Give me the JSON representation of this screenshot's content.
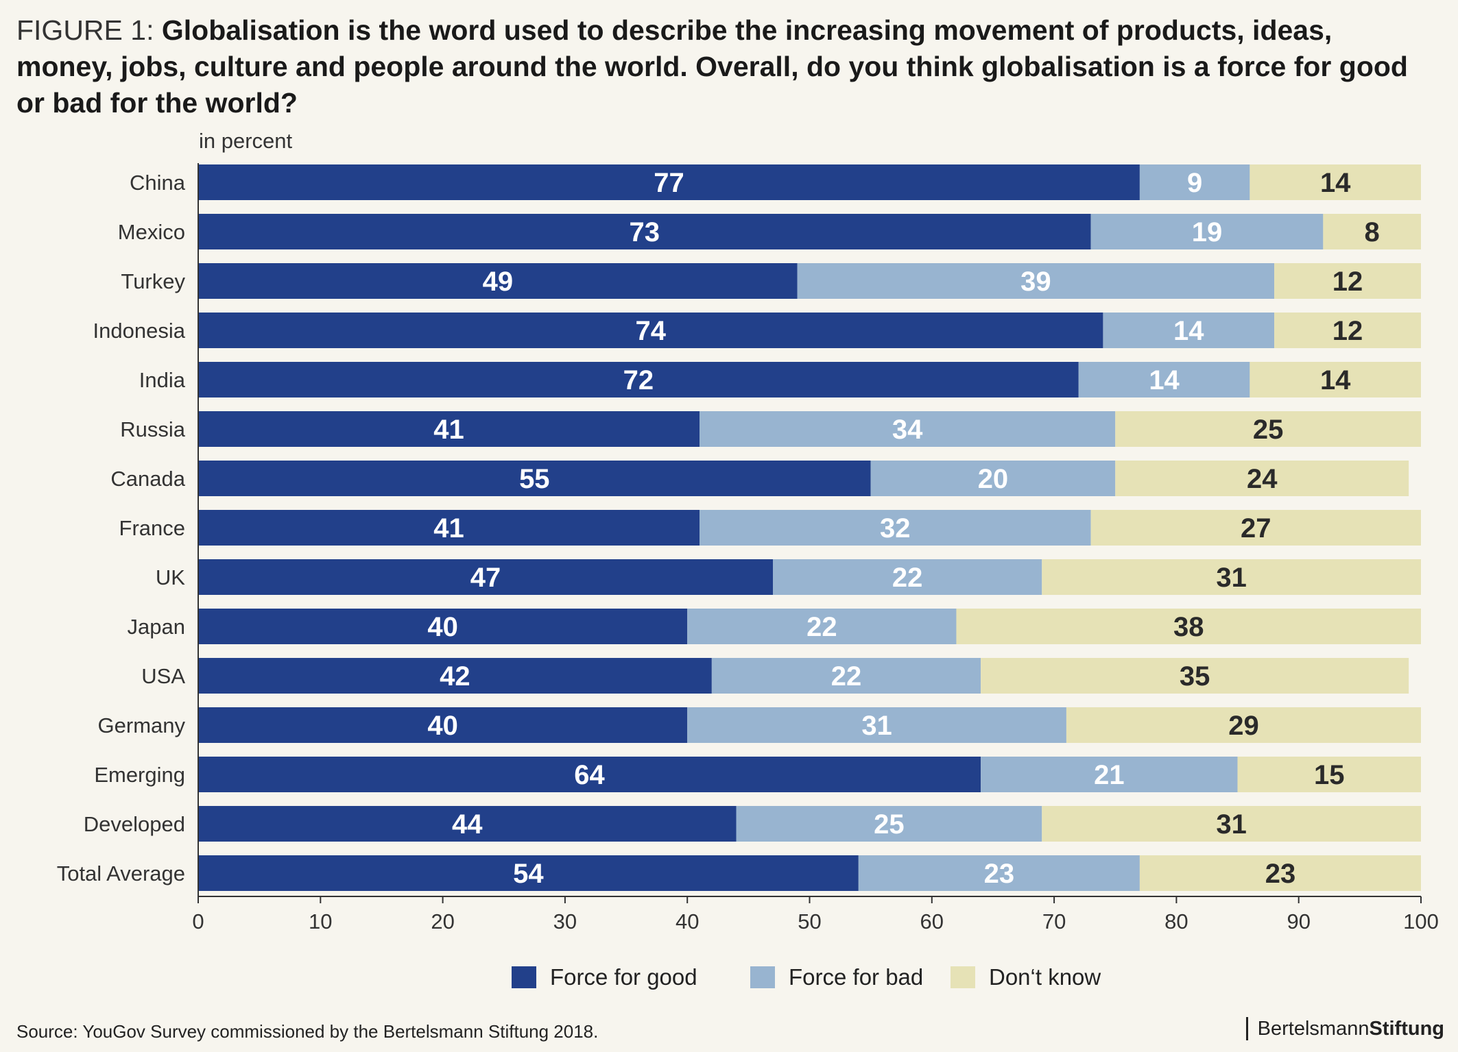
{
  "title": {
    "prefix": "FIGURE 1:",
    "question": "Globalisation is the word used to describe the increasing movement of products, ideas, money, jobs, culture and people around the world.  Overall, do you think globalisation is a force for good or bad for the world?"
  },
  "unit_label": "in percent",
  "source": "Source: YouGov Survey commissioned by the Bertelsmann Stiftung 2018.",
  "brand": {
    "part1": "Bertelsmann",
    "part2": "Stiftung"
  },
  "colors": {
    "good": "#22408a",
    "bad": "#98b4d0",
    "dontknow": "#e6e2b6",
    "background": "#f7f5ee"
  },
  "chart_data": {
    "type": "bar",
    "orientation": "horizontal",
    "stacked": true,
    "categories": [
      "China",
      "Mexico",
      "Turkey",
      "Indonesia",
      "India",
      "Russia",
      "Canada",
      "France",
      "UK",
      "Japan",
      "USA",
      "Germany",
      "Emerging",
      "Developed",
      "Total Average"
    ],
    "series": [
      {
        "name": "Force for good",
        "values": [
          77,
          73,
          49,
          74,
          72,
          41,
          55,
          41,
          47,
          40,
          42,
          40,
          64,
          44,
          54
        ]
      },
      {
        "name": "Force for bad",
        "values": [
          9,
          19,
          39,
          14,
          14,
          34,
          20,
          32,
          22,
          22,
          22,
          31,
          21,
          25,
          23
        ]
      },
      {
        "name": "Don‘t know",
        "values": [
          14,
          8,
          12,
          12,
          14,
          25,
          24,
          27,
          31,
          38,
          35,
          29,
          15,
          31,
          23
        ]
      }
    ],
    "xlim": [
      0,
      100
    ],
    "xticks": [
      0,
      10,
      20,
      30,
      40,
      50,
      60,
      70,
      80,
      90,
      100
    ],
    "ylabel": "in percent",
    "legend": "bottom",
    "grid": false
  }
}
